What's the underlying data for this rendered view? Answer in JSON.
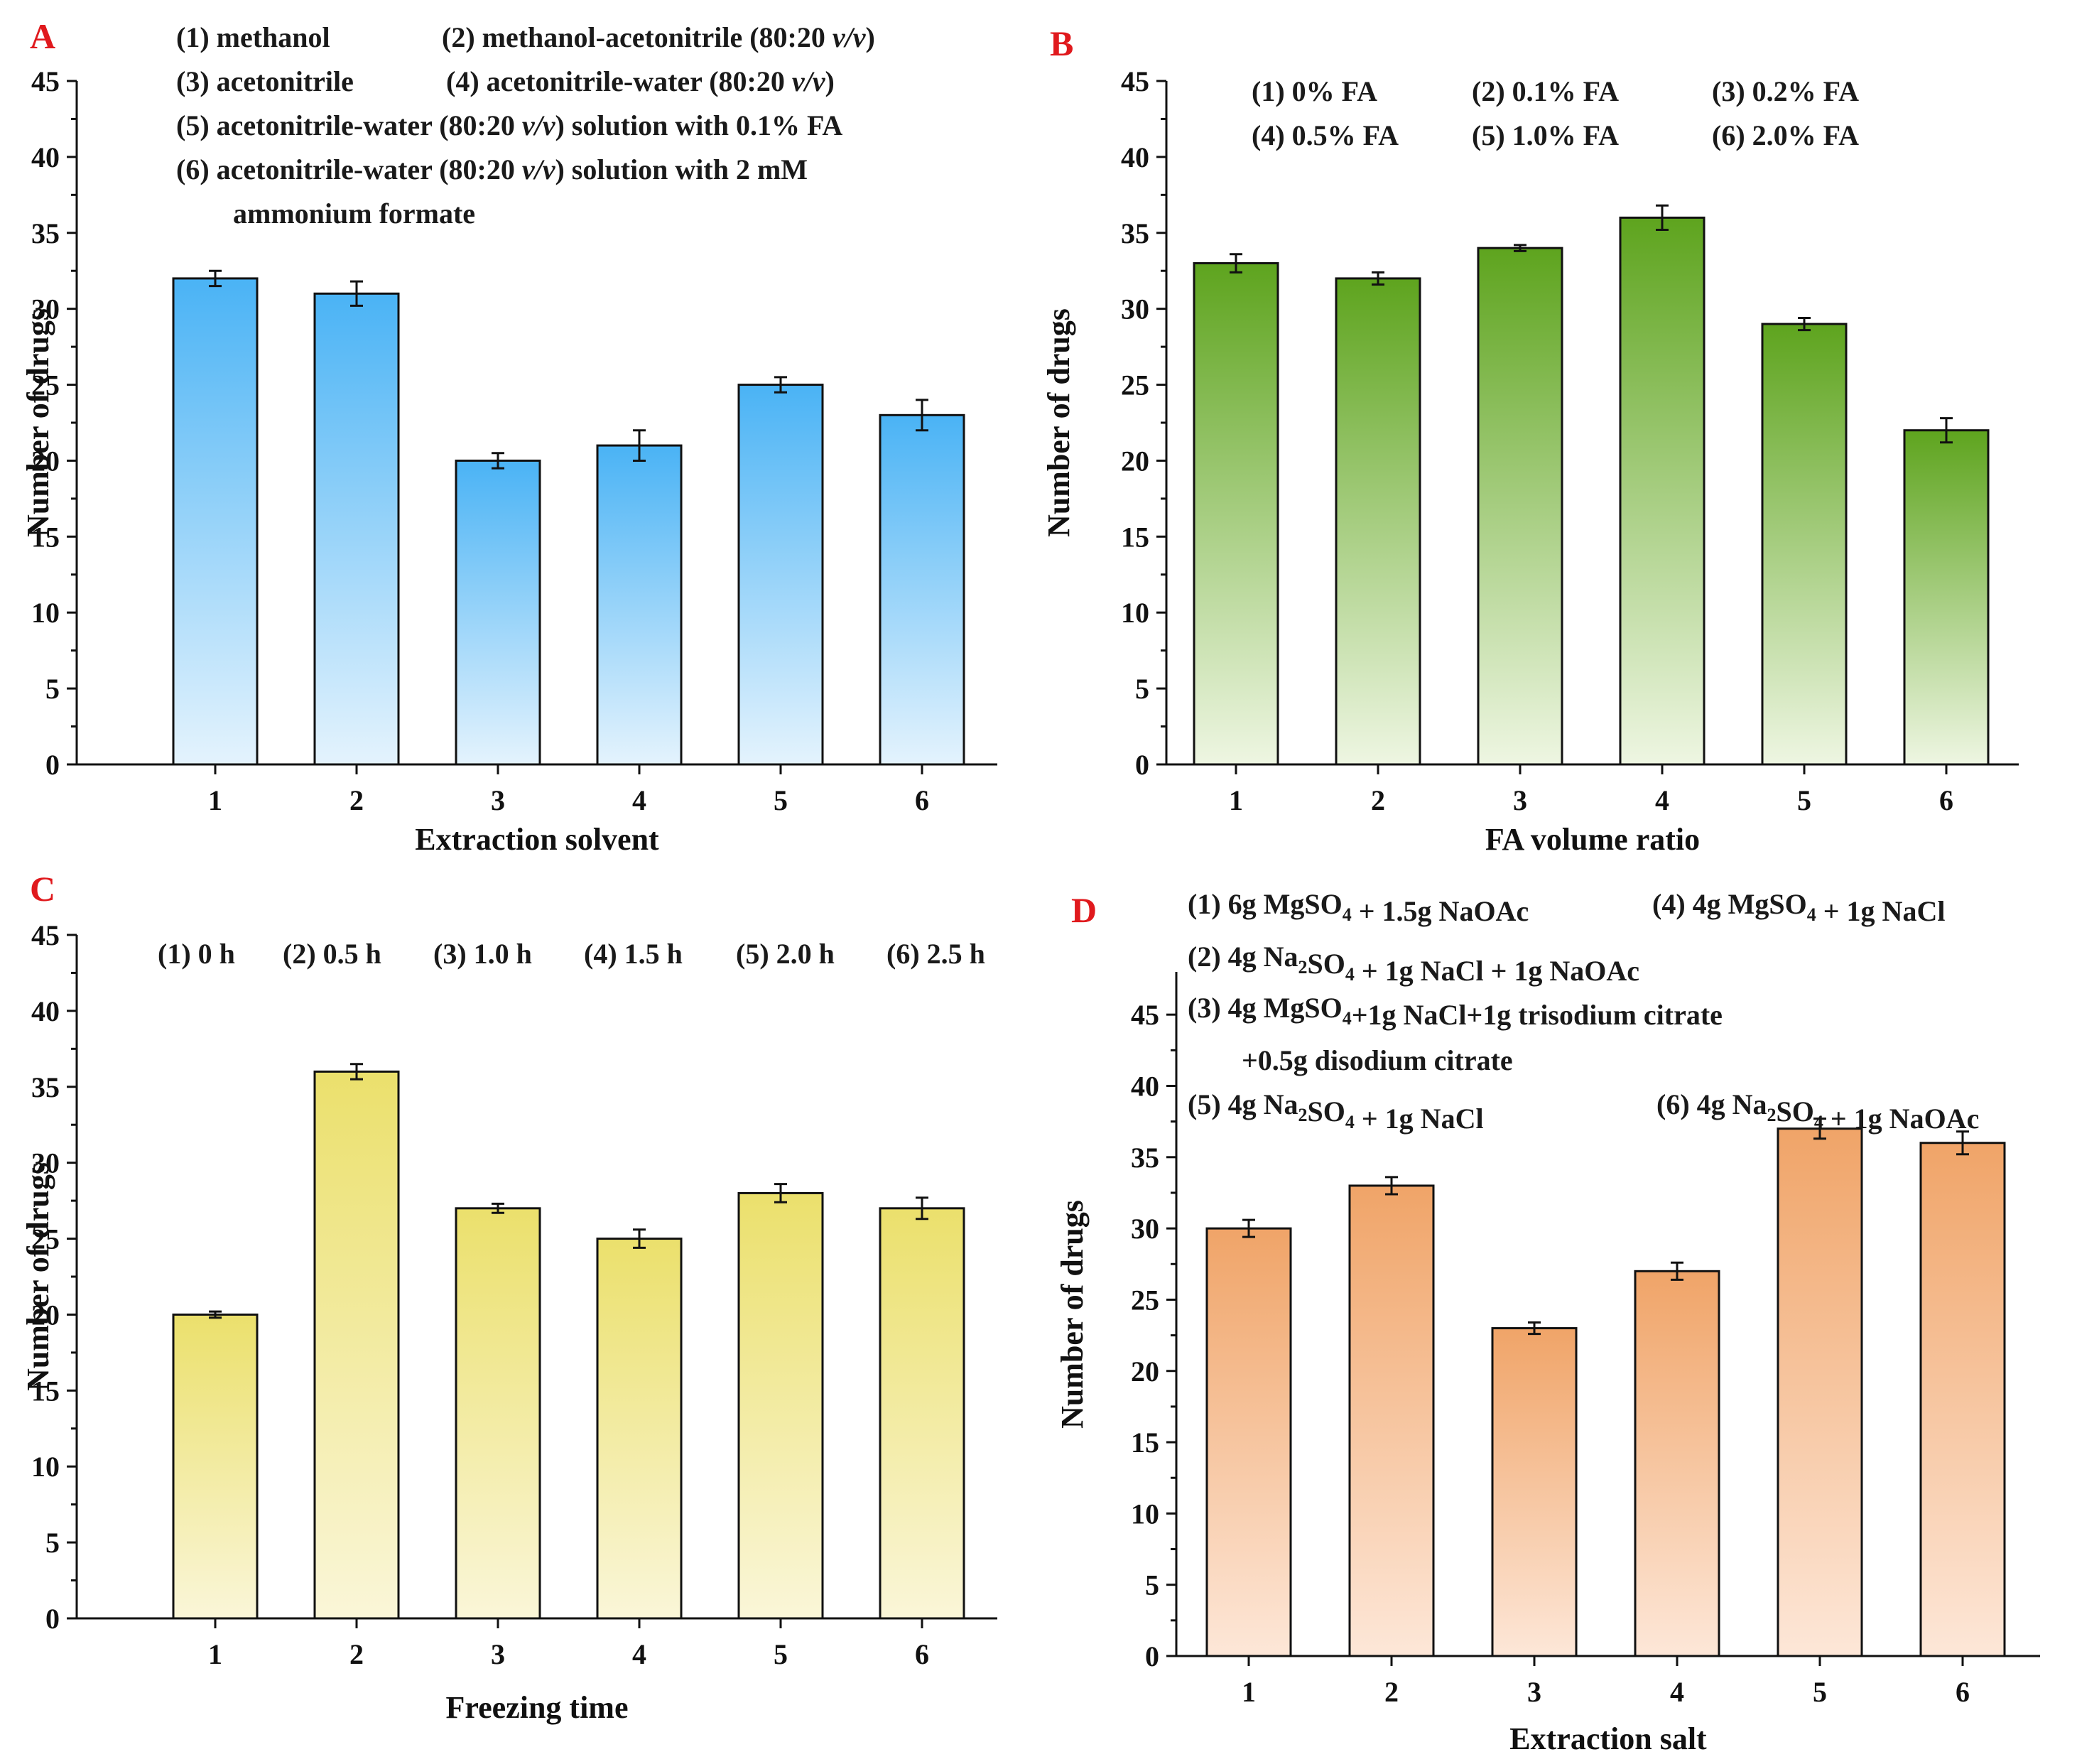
{
  "colors": {
    "A": {
      "top": "#4ab3f5",
      "bottom": "#e4f3fd"
    },
    "B": {
      "top": "#5ea41e",
      "bottom": "#eef6e2"
    },
    "C": {
      "top": "#ebe06c",
      "bottom": "#faf6d8"
    },
    "D": {
      "top": "#f0a468",
      "bottom": "#fde7d8"
    },
    "letter": "#e0191d"
  },
  "chart_data": [
    {
      "panel": "A",
      "type": "bar",
      "xlabel": "Extraction solvent",
      "ylabel": "Number of drugs",
      "ylim": [
        0,
        45
      ],
      "yticks": [
        "0",
        "5",
        "10",
        "15",
        "20",
        "25",
        "30",
        "35",
        "40",
        "45"
      ],
      "categories": [
        "1",
        "2",
        "3",
        "4",
        "5",
        "6"
      ],
      "values": [
        32,
        31,
        20,
        21,
        25,
        23
      ],
      "errors": [
        0.5,
        0.8,
        0.5,
        1.0,
        0.5,
        1.0
      ],
      "legend": [
        {
          "text": "(1) methanol"
        },
        {
          "text": "(2) methanol-acetonitrile (80:20 v/v)"
        },
        {
          "text": "(3) acetonitrile"
        },
        {
          "text": "(4) acetonitrile-water (80:20 v/v)"
        },
        {
          "text": "(5) acetonitrile-water (80:20 v/v) solution with 0.1% FA"
        },
        {
          "text": "(6) acetonitrile-water (80:20 v/v) solution with 2 mM"
        },
        {
          "text": "ammonium formate"
        }
      ]
    },
    {
      "panel": "B",
      "type": "bar",
      "xlabel": "FA volume ratio",
      "ylabel": "Number of drugs",
      "ylim": [
        0,
        45
      ],
      "yticks": [
        "0",
        "5",
        "10",
        "15",
        "20",
        "25",
        "30",
        "35",
        "40",
        "45"
      ],
      "categories": [
        "1",
        "2",
        "3",
        "4",
        "5",
        "6"
      ],
      "values": [
        33,
        32,
        34,
        36,
        29,
        22
      ],
      "errors": [
        0.6,
        0.4,
        0.2,
        0.8,
        0.4,
        0.8
      ],
      "legend": [
        {
          "text": "(1) 0% FA"
        },
        {
          "text": "(2) 0.1% FA"
        },
        {
          "text": "(3) 0.2% FA"
        },
        {
          "text": "(4) 0.5% FA"
        },
        {
          "text": "(5) 1.0% FA"
        },
        {
          "text": "(6) 2.0% FA"
        }
      ]
    },
    {
      "panel": "C",
      "type": "bar",
      "xlabel": "Freezing time",
      "ylabel": "Number of drugs",
      "ylim": [
        0,
        45
      ],
      "yticks": [
        "0",
        "5",
        "10",
        "15",
        "20",
        "25",
        "30",
        "35",
        "40",
        "45"
      ],
      "categories": [
        "1",
        "2",
        "3",
        "4",
        "5",
        "6"
      ],
      "values": [
        20,
        36,
        27,
        25,
        28,
        27
      ],
      "errors": [
        0.2,
        0.5,
        0.3,
        0.6,
        0.6,
        0.7
      ],
      "legend": [
        {
          "text": "(1) 0 h"
        },
        {
          "text": "(2) 0.5 h"
        },
        {
          "text": "(3) 1.0 h"
        },
        {
          "text": "(4) 1.5 h"
        },
        {
          "text": "(5) 2.0 h"
        },
        {
          "text": "(6) 2.5 h"
        }
      ]
    },
    {
      "panel": "D",
      "type": "bar",
      "xlabel": "Extraction salt",
      "ylabel": "Number of drugs",
      "ylim": [
        0,
        48
      ],
      "yticks": [
        "0",
        "5",
        "10",
        "15",
        "20",
        "25",
        "30",
        "35",
        "40",
        "45"
      ],
      "categories": [
        "1",
        "2",
        "3",
        "4",
        "5",
        "6"
      ],
      "values": [
        30,
        33,
        23,
        27,
        37,
        36
      ],
      "errors": [
        0.6,
        0.6,
        0.4,
        0.6,
        0.7,
        0.8
      ],
      "legend": [
        {
          "text": "(1) 6g MgSO4 + 1.5g NaOAc"
        },
        {
          "text": "(4) 4g MgSO4 + 1g NaCl"
        },
        {
          "text": "(2) 4g Na2SO4 + 1g NaCl + 1g NaOAc"
        },
        {
          "text": "(3) 4g MgSO4+1g NaCl+1g trisodium citrate"
        },
        {
          "text": "+0.5g disodium citrate"
        },
        {
          "text": "(5) 4g Na2SO4 + 1g NaCl"
        },
        {
          "text": "(6) 4g Na2SO4 + 1g NaOAc"
        }
      ]
    }
  ]
}
